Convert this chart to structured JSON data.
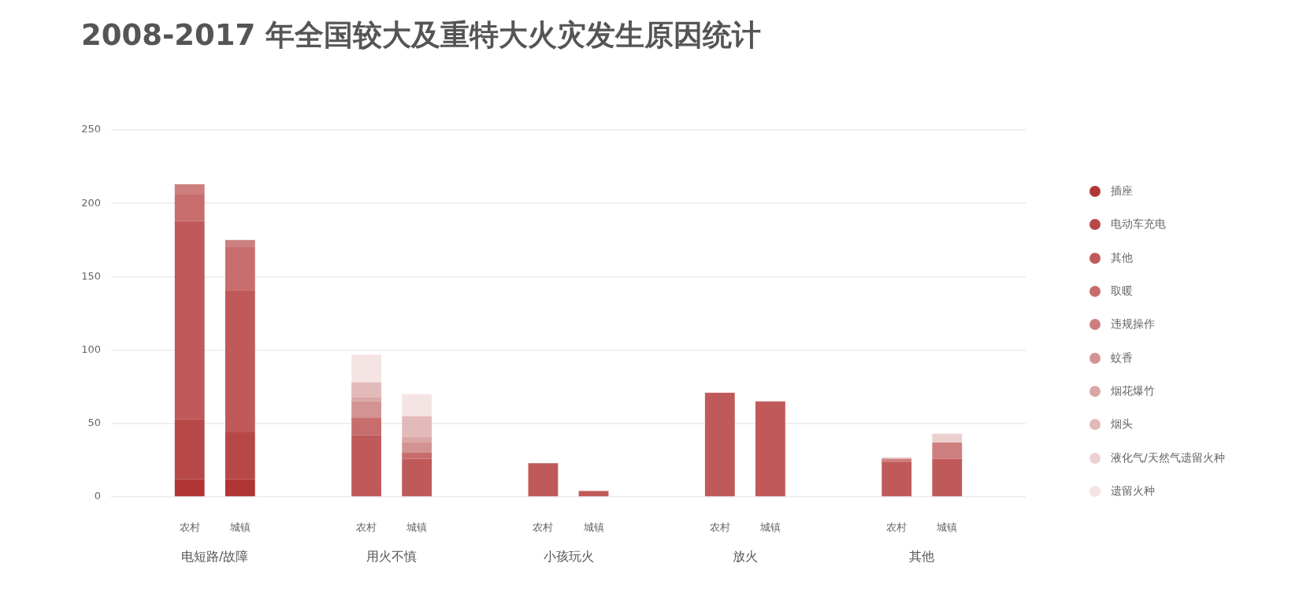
{
  "chart_data": {
    "type": "bar",
    "title": "2008-2017 年全国较大及重特大火灾发生原因统计",
    "categories": [
      "农村",
      "城镇",
      "农村",
      "城镇",
      "农村",
      "城镇",
      "农村",
      "城镇",
      "农村",
      "城镇"
    ],
    "annotations": [
      "电短路/故障",
      "用火不慎",
      "小孩玩火",
      "放火",
      "其他"
    ],
    "series": [
      {
        "name": "插座",
        "color": "#b03535",
        "values": [
          12,
          12,
          null,
          null,
          null,
          null,
          null,
          null,
          null,
          null
        ]
      },
      {
        "name": "电动车充电",
        "color": "#b84848",
        "values": [
          41,
          32,
          null,
          null,
          null,
          null,
          null,
          null,
          null,
          null
        ]
      },
      {
        "name": "其他",
        "color": "#c05a5a",
        "values": [
          135,
          97,
          42,
          26,
          23,
          4,
          71,
          65,
          24,
          26
        ]
      },
      {
        "name": "取暖",
        "color": "#c76d6d",
        "values": [
          18,
          29,
          12,
          4,
          null,
          null,
          null,
          null,
          null,
          null
        ]
      },
      {
        "name": "违规操作",
        "color": "#cd7f7f",
        "values": [
          7,
          5,
          null,
          null,
          null,
          null,
          null,
          null,
          2,
          11
        ]
      },
      {
        "name": "蚊香",
        "color": "#d49393",
        "values": [
          null,
          null,
          11,
          7,
          null,
          null,
          null,
          null,
          null,
          null
        ]
      },
      {
        "name": "烟花爆竹",
        "color": "#dba6a6",
        "values": [
          null,
          null,
          3,
          4,
          null,
          null,
          null,
          null,
          null,
          null
        ]
      },
      {
        "name": "烟头",
        "color": "#e3baba",
        "values": [
          null,
          null,
          10,
          14,
          null,
          null,
          null,
          null,
          null,
          null
        ]
      },
      {
        "name": "液化气/天然气遗留火种",
        "color": "#ecd0d0",
        "values": [
          null,
          null,
          null,
          null,
          null,
          null,
          null,
          null,
          1,
          6
        ]
      },
      {
        "name": "遗留火种",
        "color": "#f4e4e4",
        "values": [
          null,
          null,
          19,
          15,
          null,
          null,
          null,
          null,
          null,
          null
        ]
      }
    ],
    "stacked": true,
    "ylim": [
      0,
      250
    ],
    "yticks": [
      0,
      50,
      100,
      150,
      200,
      250
    ],
    "grid": "y",
    "legend": "right",
    "marker": "circle"
  }
}
